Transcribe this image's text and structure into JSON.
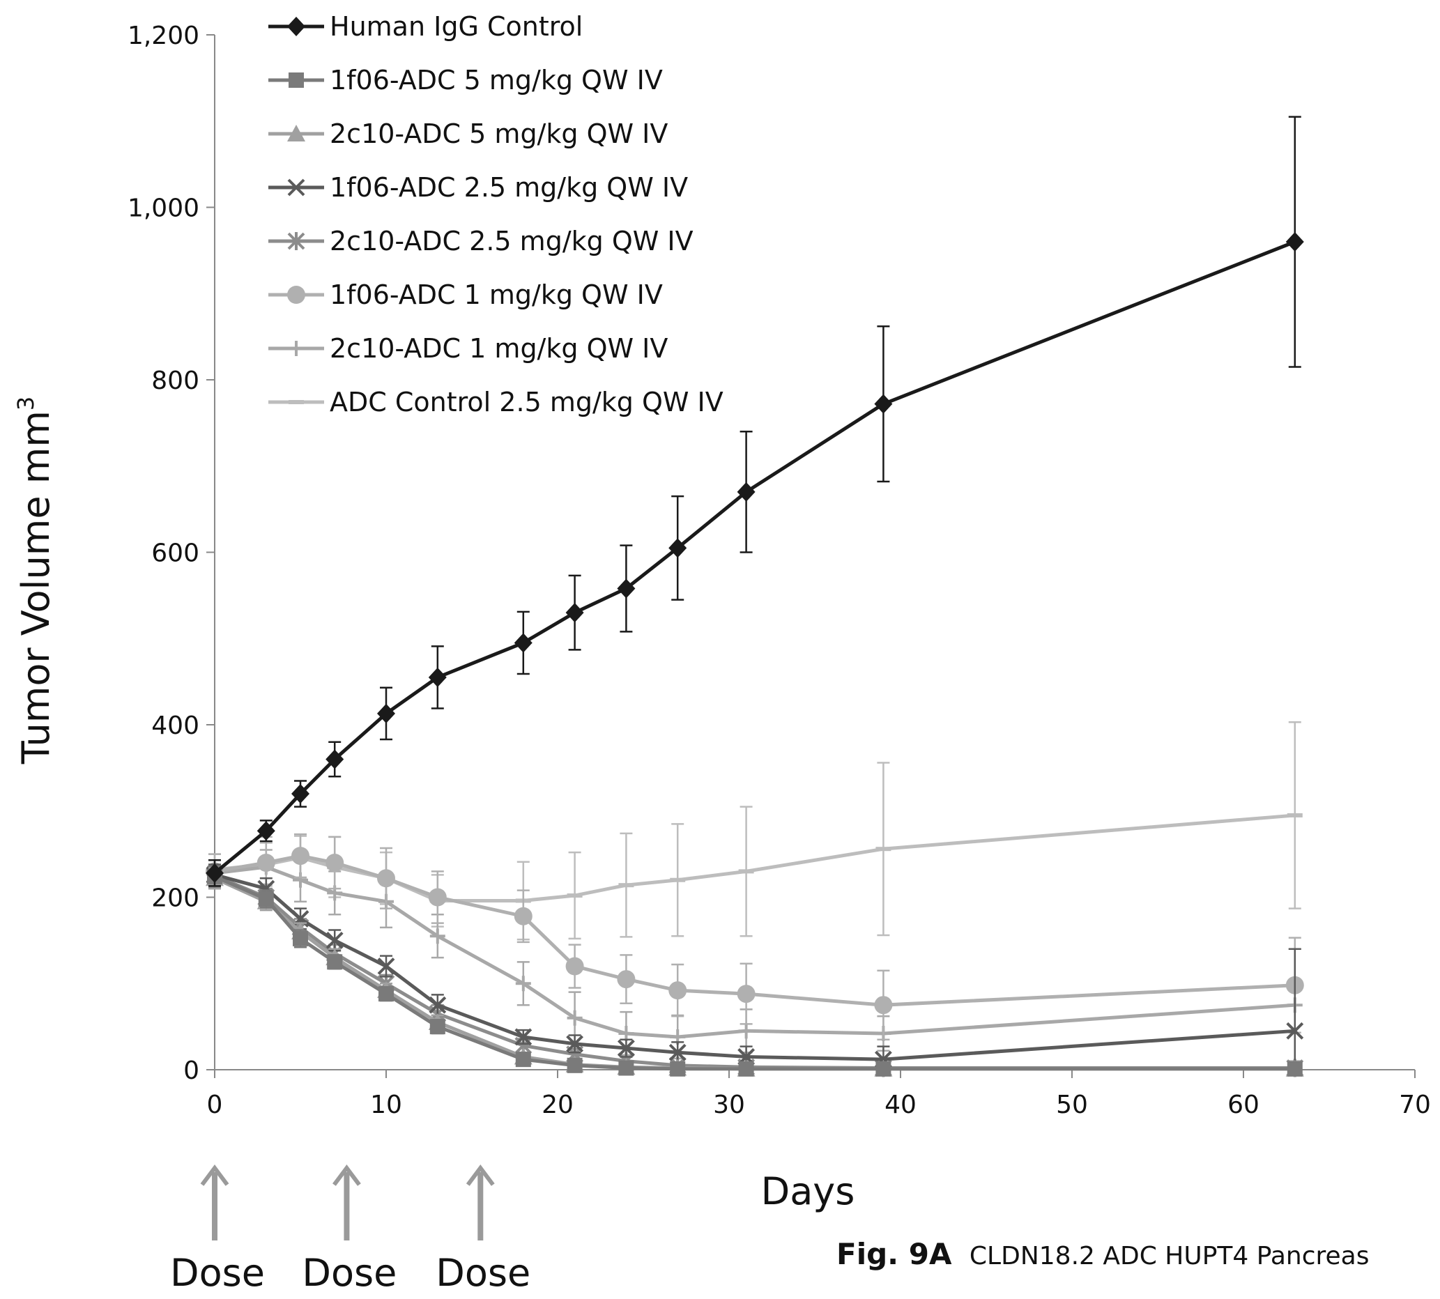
{
  "chart_data": {
    "type": "line",
    "title": "",
    "xlabel": "Days",
    "ylabel": "Tumor Volume mm",
    "ylabel_sup": "3",
    "xlim": [
      0,
      70
    ],
    "ylim": [
      0,
      1200
    ],
    "xticks": [
      "0",
      "10",
      "20",
      "30",
      "40",
      "50",
      "60",
      "70"
    ],
    "yticks": [
      "0",
      "200",
      "400",
      "600",
      "800",
      "1,000",
      "1,200"
    ],
    "x": [
      0,
      3,
      5,
      7,
      10,
      13,
      18,
      21,
      24,
      27,
      31,
      39,
      63
    ],
    "grid": false,
    "legend_position": "top-left",
    "series": [
      {
        "name": "Human IgG Control",
        "marker": "diamond",
        "color": "#1a1a1a",
        "values": [
          228,
          277,
          320,
          360,
          413,
          455,
          495,
          530,
          558,
          605,
          670,
          772,
          960
        ],
        "errors": [
          15,
          12,
          15,
          20,
          30,
          36,
          36,
          43,
          50,
          60,
          70,
          90,
          145
        ]
      },
      {
        "name": "1f06-ADC 5 mg/kg QW IV",
        "marker": "square",
        "color": "#7a7a7a",
        "values": [
          224,
          198,
          152,
          125,
          88,
          50,
          12,
          5,
          2,
          1,
          1,
          1,
          1
        ],
        "errors": [
          12,
          10,
          10,
          8,
          8,
          8,
          5,
          3,
          2,
          1,
          1,
          1,
          1
        ]
      },
      {
        "name": "2c10-ADC 5 mg/kg QW IV",
        "marker": "triangle",
        "color": "#a0a0a0",
        "values": [
          222,
          195,
          160,
          130,
          92,
          55,
          15,
          6,
          3,
          2,
          1,
          1,
          1
        ],
        "errors": [
          12,
          10,
          10,
          10,
          8,
          8,
          5,
          3,
          2,
          1,
          1,
          1,
          1
        ]
      },
      {
        "name": "1f06-ADC 2.5 mg/kg QW IV",
        "marker": "x",
        "color": "#5a5a5a",
        "values": [
          226,
          210,
          175,
          150,
          120,
          75,
          38,
          30,
          25,
          20,
          15,
          12,
          45
        ],
        "errors": [
          12,
          12,
          12,
          12,
          12,
          12,
          8,
          10,
          10,
          12,
          12,
          15,
          95
        ]
      },
      {
        "name": "2c10-ADC 2.5 mg/kg QW IV",
        "marker": "star",
        "color": "#8c8c8c",
        "values": [
          225,
          200,
          165,
          135,
          100,
          65,
          28,
          18,
          10,
          5,
          3,
          2,
          2
        ],
        "errors": [
          12,
          10,
          10,
          10,
          10,
          10,
          8,
          6,
          5,
          3,
          2,
          2,
          2
        ]
      },
      {
        "name": "1f06-ADC 1 mg/kg QW IV",
        "marker": "circle",
        "color": "#b0b0b0",
        "values": [
          230,
          240,
          248,
          240,
          222,
          200,
          178,
          120,
          105,
          92,
          88,
          75,
          98
        ],
        "errors": [
          20,
          30,
          25,
          30,
          35,
          30,
          30,
          25,
          28,
          30,
          35,
          40,
          55
        ]
      },
      {
        "name": "2c10-ADC 1 mg/kg QW IV",
        "marker": "plus",
        "color": "#a8a8a8",
        "values": [
          228,
          235,
          220,
          205,
          195,
          155,
          100,
          60,
          42,
          38,
          45,
          42,
          75
        ],
        "errors": [
          15,
          20,
          25,
          25,
          30,
          25,
          25,
          30,
          25,
          25,
          25,
          20,
          65
        ]
      },
      {
        "name": "ADC Control 2.5 mg/kg QW IV",
        "marker": "dash",
        "color": "#bdbdbd",
        "values": [
          232,
          238,
          246,
          235,
          222,
          196,
          196,
          202,
          214,
          220,
          230,
          256,
          295
        ],
        "errors": [
          18,
          25,
          25,
          35,
          30,
          30,
          45,
          50,
          60,
          65,
          75,
          100,
          108
        ]
      }
    ],
    "dose_labels": [
      "Dose",
      "Dose",
      "Dose"
    ],
    "dose_days": [
      0,
      7.7,
      15.5
    ]
  },
  "caption": {
    "figure_number": "Fig. 9A",
    "text": "CLDN18.2 ADC HUPT4 Pancreas"
  }
}
